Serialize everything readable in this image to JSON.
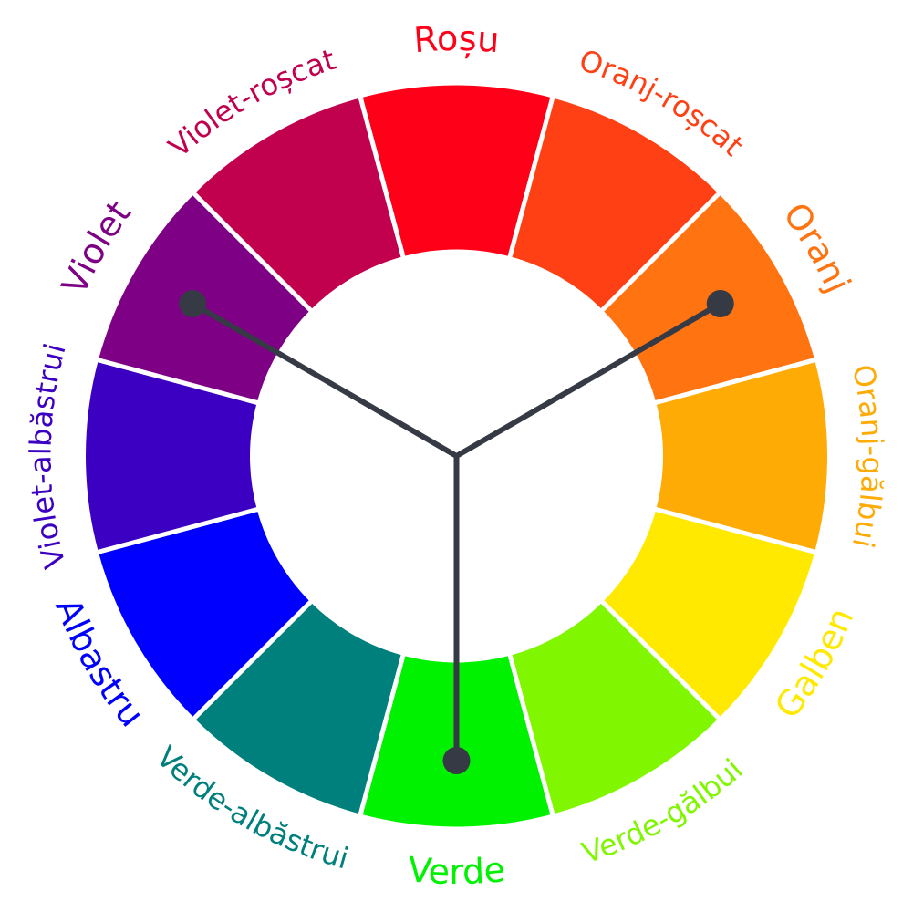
{
  "wheel": {
    "segments": [
      {
        "name": "Roșu",
        "color": "#FF0019"
      },
      {
        "name": "Oranj-roșcat",
        "color": "#FF4014"
      },
      {
        "name": "Oranj",
        "color": "#FF7311"
      },
      {
        "name": "Oranj-gălbui",
        "color": "#FFAB06"
      },
      {
        "name": "Galben",
        "color": "#FFE900"
      },
      {
        "name": "Verde-gălbui",
        "color": "#80F600"
      },
      {
        "name": "Verde",
        "color": "#00F200"
      },
      {
        "name": "Verde-albăstrui",
        "color": "#00807D"
      },
      {
        "name": "Albastru",
        "color": "#0000FF"
      },
      {
        "name": "Violet-albăstrui",
        "color": "#3C00C2"
      },
      {
        "name": "Violet",
        "color": "#7E0085"
      },
      {
        "name": "Violet-roșcat",
        "color": "#C1004E"
      }
    ],
    "triad": {
      "colors": [
        "Oranj",
        "Verde",
        "Violet"
      ],
      "line_color": "#363A45"
    }
  }
}
